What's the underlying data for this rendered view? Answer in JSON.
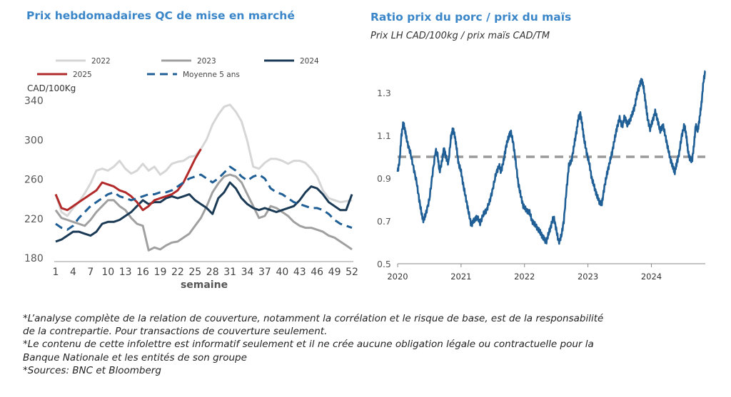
{
  "chart_data": [
    {
      "type": "line",
      "title": "Prix hebdomadaires QC de mise en marché",
      "ylabel": "CAD/100Kg",
      "xlabel": "semaine",
      "ylim": [
        180,
        340
      ],
      "yticks": [
        180,
        220,
        260,
        300,
        340
      ],
      "xlim": [
        1,
        52
      ],
      "xticks": [
        1,
        4,
        7,
        10,
        13,
        16,
        19,
        22,
        25,
        28,
        31,
        34,
        37,
        40,
        43,
        46,
        49,
        52
      ],
      "grid": false,
      "legend": "top",
      "series": [
        {
          "name": "2022",
          "color": "#d6d6d6",
          "dash": false,
          "values": [
            244,
            226,
            222,
            230,
            236,
            245,
            255,
            268,
            270,
            268,
            272,
            278,
            270,
            265,
            268,
            275,
            268,
            272,
            264,
            268,
            275,
            277,
            278,
            282,
            283,
            290,
            300,
            315,
            325,
            333,
            335,
            328,
            318,
            298,
            272,
            270,
            276,
            280,
            280,
            278,
            275,
            278,
            278,
            276,
            270,
            262,
            248,
            240,
            238,
            236,
            237,
            238
          ]
        },
        {
          "name": "2023",
          "color": "#a0a0a0",
          "dash": false,
          "values": [
            228,
            220,
            218,
            216,
            214,
            212,
            218,
            226,
            232,
            238,
            238,
            232,
            228,
            220,
            214,
            212,
            187,
            190,
            188,
            192,
            195,
            196,
            200,
            204,
            212,
            220,
            232,
            246,
            255,
            262,
            264,
            262,
            256,
            244,
            232,
            220,
            222,
            232,
            230,
            226,
            222,
            216,
            212,
            210,
            210,
            208,
            206,
            202,
            200,
            196,
            192,
            188
          ]
        },
        {
          "name": "2024",
          "color": "#1a3a55",
          "dash": false,
          "values": [
            196,
            198,
            202,
            206,
            206,
            204,
            202,
            206,
            214,
            216,
            216,
            218,
            222,
            226,
            232,
            238,
            234,
            236,
            236,
            240,
            242,
            240,
            242,
            244,
            238,
            234,
            230,
            224,
            240,
            246,
            256,
            250,
            240,
            234,
            230,
            228,
            230,
            228,
            226,
            228,
            230,
            232,
            238,
            246,
            252,
            250,
            244,
            236,
            232,
            228,
            228,
            244
          ]
        },
        {
          "name": "2025",
          "color": "#b22a2a",
          "dash": false,
          "values": [
            244,
            230,
            228,
            232,
            236,
            240,
            244,
            248,
            256,
            254,
            252,
            248,
            246,
            242,
            236,
            228,
            232,
            238,
            240,
            242,
            244,
            248,
            256,
            268,
            280,
            290
          ]
        },
        {
          "name": "Moyenne 5 ans",
          "color": "#1f5f96",
          "dash": true,
          "values": [
            214,
            210,
            208,
            212,
            220,
            226,
            232,
            236,
            240,
            244,
            246,
            242,
            240,
            238,
            240,
            242,
            244,
            244,
            246,
            246,
            248,
            252,
            256,
            260,
            262,
            264,
            260,
            256,
            260,
            266,
            272,
            268,
            262,
            258,
            262,
            264,
            260,
            250,
            246,
            244,
            240,
            236,
            234,
            232,
            230,
            230,
            228,
            224,
            218,
            214,
            212,
            210
          ]
        }
      ]
    },
    {
      "type": "line",
      "title": "Ratio prix du porc / prix du maïs",
      "subtitle": "Prix LH CAD/100kg / prix maïs CAD/TM",
      "ylim": [
        0.5,
        1.4
      ],
      "yticks": [
        0.5,
        0.7,
        0.9,
        1.1,
        1.3
      ],
      "xlim": [
        2020.0,
        2024.85
      ],
      "xticks": [
        2020,
        2021,
        2022,
        2023,
        2024
      ],
      "reference_line": 1.0,
      "series": [
        {
          "name": "",
          "color": "#1f5f96",
          "points": [
            [
              2020.0,
              0.93
            ],
            [
              2020.03,
              0.98
            ],
            [
              2020.06,
              1.1
            ],
            [
              2020.09,
              1.16
            ],
            [
              2020.12,
              1.12
            ],
            [
              2020.15,
              1.07
            ],
            [
              2020.2,
              1.02
            ],
            [
              2020.25,
              0.95
            ],
            [
              2020.3,
              0.88
            ],
            [
              2020.34,
              0.8
            ],
            [
              2020.38,
              0.73
            ],
            [
              2020.41,
              0.7
            ],
            [
              2020.45,
              0.74
            ],
            [
              2020.5,
              0.8
            ],
            [
              2020.55,
              0.92
            ],
            [
              2020.6,
              1.03
            ],
            [
              2020.63,
              1.01
            ],
            [
              2020.66,
              0.93
            ],
            [
              2020.7,
              0.98
            ],
            [
              2020.73,
              1.04
            ],
            [
              2020.76,
              1.0
            ],
            [
              2020.8,
              0.97
            ],
            [
              2020.84,
              1.09
            ],
            [
              2020.87,
              1.13
            ],
            [
              2020.9,
              1.1
            ],
            [
              2020.93,
              1.04
            ],
            [
              2020.96,
              0.97
            ],
            [
              2021.0,
              0.93
            ],
            [
              2021.04,
              0.86
            ],
            [
              2021.08,
              0.8
            ],
            [
              2021.12,
              0.74
            ],
            [
              2021.16,
              0.68
            ],
            [
              2021.2,
              0.7
            ],
            [
              2021.25,
              0.72
            ],
            [
              2021.3,
              0.69
            ],
            [
              2021.35,
              0.73
            ],
            [
              2021.4,
              0.75
            ],
            [
              2021.45,
              0.79
            ],
            [
              2021.5,
              0.85
            ],
            [
              2021.55,
              0.92
            ],
            [
              2021.6,
              0.96
            ],
            [
              2021.63,
              0.93
            ],
            [
              2021.67,
              0.98
            ],
            [
              2021.71,
              1.05
            ],
            [
              2021.75,
              1.09
            ],
            [
              2021.78,
              1.12
            ],
            [
              2021.82,
              1.07
            ],
            [
              2021.86,
              0.98
            ],
            [
              2021.9,
              0.88
            ],
            [
              2021.94,
              0.82
            ],
            [
              2021.98,
              0.77
            ],
            [
              2022.03,
              0.75
            ],
            [
              2022.08,
              0.74
            ],
            [
              2022.12,
              0.7
            ],
            [
              2022.17,
              0.68
            ],
            [
              2022.22,
              0.66
            ],
            [
              2022.26,
              0.64
            ],
            [
              2022.3,
              0.62
            ],
            [
              2022.34,
              0.6
            ],
            [
              2022.38,
              0.64
            ],
            [
              2022.42,
              0.68
            ],
            [
              2022.46,
              0.72
            ],
            [
              2022.5,
              0.66
            ],
            [
              2022.54,
              0.6
            ],
            [
              2022.58,
              0.63
            ],
            [
              2022.62,
              0.7
            ],
            [
              2022.66,
              0.84
            ],
            [
              2022.7,
              0.96
            ],
            [
              2022.74,
              0.98
            ],
            [
              2022.78,
              1.05
            ],
            [
              2022.82,
              1.12
            ],
            [
              2022.85,
              1.18
            ],
            [
              2022.88,
              1.2
            ],
            [
              2022.91,
              1.15
            ],
            [
              2022.94,
              1.08
            ],
            [
              2022.98,
              1.02
            ],
            [
              2023.02,
              0.97
            ],
            [
              2023.06,
              0.9
            ],
            [
              2023.1,
              0.86
            ],
            [
              2023.14,
              0.82
            ],
            [
              2023.18,
              0.79
            ],
            [
              2023.22,
              0.78
            ],
            [
              2023.26,
              0.86
            ],
            [
              2023.3,
              0.92
            ],
            [
              2023.34,
              0.97
            ],
            [
              2023.38,
              1.02
            ],
            [
              2023.42,
              1.08
            ],
            [
              2023.46,
              1.14
            ],
            [
              2023.5,
              1.18
            ],
            [
              2023.54,
              1.14
            ],
            [
              2023.58,
              1.19
            ],
            [
              2023.62,
              1.15
            ],
            [
              2023.66,
              1.17
            ],
            [
              2023.7,
              1.2
            ],
            [
              2023.74,
              1.24
            ],
            [
              2023.78,
              1.3
            ],
            [
              2023.82,
              1.34
            ],
            [
              2023.85,
              1.36
            ],
            [
              2023.88,
              1.32
            ],
            [
              2023.91,
              1.25
            ],
            [
              2023.94,
              1.18
            ],
            [
              2023.98,
              1.13
            ],
            [
              2024.02,
              1.17
            ],
            [
              2024.06,
              1.21
            ],
            [
              2024.1,
              1.17
            ],
            [
              2024.14,
              1.12
            ],
            [
              2024.18,
              1.15
            ],
            [
              2024.22,
              1.1
            ],
            [
              2024.26,
              1.04
            ],
            [
              2024.3,
              0.99
            ],
            [
              2024.34,
              0.95
            ],
            [
              2024.37,
              0.93
            ],
            [
              2024.4,
              0.97
            ],
            [
              2024.44,
              1.02
            ],
            [
              2024.48,
              1.1
            ],
            [
              2024.52,
              1.15
            ],
            [
              2024.55,
              1.1
            ],
            [
              2024.58,
              1.02
            ],
            [
              2024.61,
              0.99
            ],
            [
              2024.64,
              0.98
            ],
            [
              2024.67,
              1.05
            ],
            [
              2024.7,
              1.15
            ],
            [
              2024.73,
              1.12
            ],
            [
              2024.76,
              1.18
            ],
            [
              2024.79,
              1.25
            ],
            [
              2024.82,
              1.35
            ],
            [
              2024.85,
              1.4
            ]
          ]
        }
      ]
    }
  ],
  "notes": [
    "*L’analyse complète de la relation de couverture, notamment la corrélation et le risque de base, est de la responsabilité de la contrepartie. Pour transactions de couverture seulement.",
    "*Le contenu de cette infolettre est informatif seulement et il ne crée aucune obligation légale ou contractuelle pour la Banque Nationale et les entités de son groupe",
    "*Sources: BNC et Bloomberg"
  ]
}
